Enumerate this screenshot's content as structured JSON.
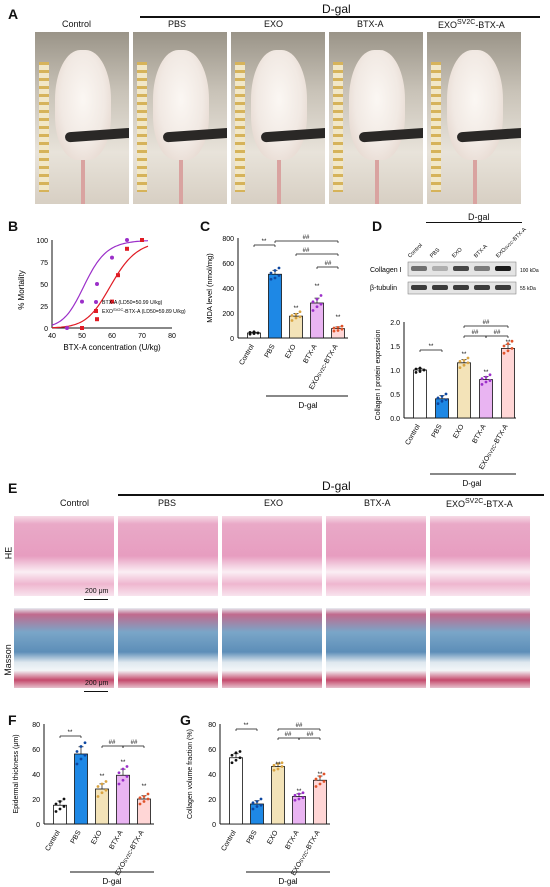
{
  "panelA": {
    "letter": "A",
    "dgal": "D-gal",
    "groups": [
      "Control",
      "PBS",
      "EXO",
      "BTX-A",
      "EXO"
    ],
    "exo_sup": "SV2C",
    "exo_tail": "-BTX-A"
  },
  "panelB": {
    "letter": "B",
    "ylabel": "% Mortality",
    "xlabel": "BTX-A concentration (U/kg)",
    "yticks": [
      "0",
      "25",
      "50",
      "75",
      "100"
    ],
    "xticks": [
      "40",
      "50",
      "60",
      "70",
      "80"
    ],
    "legend1": "BTX-A (LD50=50.99 U/kg)",
    "legend2_pre": "EXO",
    "legend2_sup": "SV2C",
    "legend2_post": "-BTX-A  (LD50=59.89 U/kg)"
  },
  "panelC": {
    "letter": "C",
    "ylabel": "MDA level (nmol/mg)",
    "yticks": [
      "0",
      "200",
      "400",
      "600",
      "800"
    ],
    "xlabels": [
      "Control",
      "PBS",
      "EXO",
      "BTX-A",
      "EXO"
    ],
    "exo_sup": "SV2C",
    "exo_tail": "-BTX-A",
    "dgal": "D-gal"
  },
  "panelD": {
    "letter": "D",
    "dgal": "D-gal",
    "blot_labels": [
      "Control",
      "PBS",
      "EXO",
      "BTX-A",
      "EXO"
    ],
    "blot_exo_sup": "SV2C",
    "blot_exo_tail": "-BTX-A",
    "row1": "Collagen I",
    "row2": "β-tubulin",
    "mw1": "100 kDa",
    "mw2": "55 kDa",
    "ylabel": "Collagen I protein expression",
    "yticks": [
      "0.0",
      "0.5",
      "1.0",
      "1.5",
      "2.0"
    ]
  },
  "panelE": {
    "letter": "E",
    "dgal": "D-gal",
    "groups": [
      "Control",
      "PBS",
      "EXO",
      "BTX-A",
      "EXO"
    ],
    "exo_sup": "SV2C",
    "exo_tail": "-BTX-A",
    "row1": "HE",
    "row2": "Masson",
    "scale": "200 μm"
  },
  "panelF": {
    "letter": "F",
    "ylabel": "Epidermal thickness (μm)",
    "yticks": [
      "0",
      "20",
      "40",
      "60",
      "80"
    ],
    "xlabels": [
      "Control",
      "PBS",
      "EXO",
      "BTX-A",
      "EXO"
    ],
    "exo_sup": "SV2C",
    "exo_tail": "-BTX-A",
    "dgal": "D-gal"
  },
  "panelG": {
    "letter": "G",
    "ylabel": "Collagen volume fraction (%)",
    "yticks": [
      "0",
      "20",
      "40",
      "60",
      "80"
    ],
    "xlabels": [
      "Control",
      "PBS",
      "EXO",
      "BTX-A",
      "EXO"
    ],
    "exo_sup": "SV2C",
    "exo_tail": "-BTX-A",
    "dgal": "D-gal"
  },
  "sig": {
    "ss": "**",
    "hh": "##"
  },
  "chart_data": [
    {
      "type": "line",
      "id": "B",
      "xlabel": "BTX-A concentration (U/kg)",
      "ylabel": "% Mortality",
      "xlim": [
        40,
        80
      ],
      "ylim": [
        0,
        100
      ],
      "series": [
        {
          "name": "BTX-A (LD50=50.99 U/kg)",
          "color": "#9b2fc9",
          "x": [
            45,
            50,
            55,
            60,
            65,
            70
          ],
          "y": [
            0,
            30,
            50,
            80,
            100,
            100
          ]
        },
        {
          "name": "EXOSV2C-BTX-A (LD50=59.89 U/kg)",
          "color": "#e01b24",
          "x": [
            50,
            55,
            60,
            62,
            65,
            70
          ],
          "y": [
            0,
            10,
            30,
            60,
            90,
            100
          ]
        }
      ]
    },
    {
      "type": "bar",
      "id": "C",
      "ylabel": "MDA level (nmol/mg)",
      "ylim": [
        0,
        800
      ],
      "categories": [
        "Control",
        "PBS",
        "EXO",
        "BTX-A",
        "EXOSV2C-BTX-A"
      ],
      "values": [
        40,
        510,
        175,
        280,
        75
      ],
      "colors": [
        "#ffffff",
        "#1e88e5",
        "#f3e3b8",
        "#e9b4f2",
        "#ffd6d6"
      ],
      "points": [
        [
          30,
          35,
          40,
          45,
          50,
          40
        ],
        [
          470,
          480,
          500,
          520,
          540,
          560
        ],
        [
          140,
          160,
          170,
          180,
          190,
          210
        ],
        [
          220,
          250,
          270,
          290,
          310,
          340
        ],
        [
          55,
          60,
          70,
          80,
          85,
          95
        ]
      ]
    },
    {
      "type": "bar",
      "id": "D",
      "ylabel": "Collagen I protein expression",
      "ylim": [
        0,
        2.0
      ],
      "categories": [
        "Control",
        "PBS",
        "EXO",
        "BTX-A",
        "EXOSV2C-BTX-A"
      ],
      "values": [
        1.0,
        0.4,
        1.15,
        0.8,
        1.45
      ],
      "colors": [
        "#ffffff",
        "#1e88e5",
        "#f3e3b8",
        "#e9b4f2",
        "#ffd6d6"
      ],
      "points": [
        [
          0.95,
          0.97,
          1.0,
          1.02,
          1.04,
          1.0
        ],
        [
          0.3,
          0.35,
          0.38,
          0.42,
          0.45,
          0.5
        ],
        [
          1.05,
          1.1,
          1.15,
          1.18,
          1.2,
          1.25
        ],
        [
          0.7,
          0.75,
          0.78,
          0.82,
          0.85,
          0.9
        ],
        [
          1.35,
          1.4,
          1.45,
          1.5,
          1.55,
          1.6
        ]
      ]
    },
    {
      "type": "bar",
      "id": "F",
      "ylabel": "Epidermal thickness (μm)",
      "ylim": [
        0,
        80
      ],
      "categories": [
        "Control",
        "PBS",
        "EXO",
        "BTX-A",
        "EXOSV2C-BTX-A"
      ],
      "values": [
        15,
        56,
        28,
        39,
        20
      ],
      "colors": [
        "#ffffff",
        "#1e88e5",
        "#f3e3b8",
        "#e9b4f2",
        "#ffd6d6"
      ],
      "points": [
        [
          10,
          12,
          14,
          16,
          18,
          20
        ],
        [
          48,
          52,
          55,
          58,
          62,
          65
        ],
        [
          22,
          25,
          27,
          30,
          32,
          34
        ],
        [
          32,
          35,
          38,
          41,
          44,
          46
        ],
        [
          16,
          18,
          20,
          21,
          22,
          24
        ]
      ]
    },
    {
      "type": "bar",
      "id": "G",
      "ylabel": "Collagen volume fraction (%)",
      "ylim": [
        0,
        80
      ],
      "categories": [
        "Control",
        "PBS",
        "EXO",
        "BTX-A",
        "EXOSV2C-BTX-A"
      ],
      "values": [
        53,
        16,
        46,
        22,
        35
      ],
      "colors": [
        "#ffffff",
        "#1e88e5",
        "#f3e3b8",
        "#e9b4f2",
        "#ffd6d6"
      ],
      "points": [
        [
          49,
          51,
          53,
          55,
          57,
          58
        ],
        [
          12,
          14,
          15,
          17,
          18,
          20
        ],
        [
          43,
          44,
          46,
          47,
          48,
          49
        ],
        [
          19,
          20,
          21,
          23,
          24,
          25
        ],
        [
          30,
          32,
          34,
          36,
          38,
          40
        ]
      ]
    }
  ]
}
